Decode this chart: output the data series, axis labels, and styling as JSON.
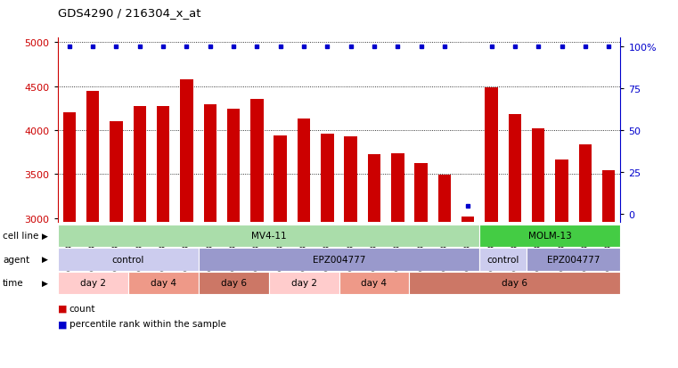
{
  "title": "GDS4290 / 216304_x_at",
  "samples": [
    "GSM739151",
    "GSM739152",
    "GSM739153",
    "GSM739157",
    "GSM739158",
    "GSM739159",
    "GSM739163",
    "GSM739164",
    "GSM739165",
    "GSM739148",
    "GSM739149",
    "GSM739150",
    "GSM739154",
    "GSM739155",
    "GSM739156",
    "GSM739160",
    "GSM739161",
    "GSM739162",
    "GSM739169",
    "GSM739170",
    "GSM739171",
    "GSM739166",
    "GSM739167",
    "GSM739168"
  ],
  "counts": [
    4200,
    4450,
    4100,
    4270,
    4270,
    4580,
    4290,
    4240,
    4350,
    3940,
    4130,
    3960,
    3930,
    3730,
    3740,
    3620,
    3490,
    3020,
    4490,
    4180,
    4020,
    3660,
    3840,
    3540
  ],
  "percentile_ranks": [
    100,
    100,
    100,
    100,
    100,
    100,
    100,
    100,
    100,
    100,
    100,
    100,
    100,
    100,
    100,
    100,
    100,
    5,
    100,
    100,
    100,
    100,
    100,
    100
  ],
  "bar_color": "#cc0000",
  "dot_color": "#0000cc",
  "ylim_left": [
    2950,
    5050
  ],
  "ylim_right": [
    -5,
    105
  ],
  "yticks_left": [
    3000,
    3500,
    4000,
    4500,
    5000
  ],
  "yticks_right": [
    0,
    25,
    50,
    75,
    100
  ],
  "ytick_labels_right": [
    "0",
    "25",
    "50",
    "75",
    "100%"
  ],
  "grid_values": [
    3500,
    4000,
    4500,
    5000
  ],
  "cell_line_data": [
    {
      "label": "MV4-11",
      "start": 0,
      "end": 18,
      "color": "#aaddaa"
    },
    {
      "label": "MOLM-13",
      "start": 18,
      "end": 24,
      "color": "#44cc44"
    }
  ],
  "agent_data": [
    {
      "label": "control",
      "start": 0,
      "end": 6,
      "color": "#ccccee"
    },
    {
      "label": "EPZ004777",
      "start": 6,
      "end": 18,
      "color": "#9999cc"
    },
    {
      "label": "control",
      "start": 18,
      "end": 20,
      "color": "#ccccee"
    },
    {
      "label": "EPZ004777",
      "start": 20,
      "end": 24,
      "color": "#9999cc"
    }
  ],
  "time_data": [
    {
      "label": "day 2",
      "start": 0,
      "end": 3,
      "color": "#ffcccc"
    },
    {
      "label": "day 4",
      "start": 3,
      "end": 6,
      "color": "#ee9988"
    },
    {
      "label": "day 6",
      "start": 6,
      "end": 9,
      "color": "#cc7766"
    },
    {
      "label": "day 2",
      "start": 9,
      "end": 12,
      "color": "#ffcccc"
    },
    {
      "label": "day 4",
      "start": 12,
      "end": 15,
      "color": "#ee9988"
    },
    {
      "label": "day 6",
      "start": 15,
      "end": 24,
      "color": "#cc7766"
    }
  ],
  "background_color": "#ffffff",
  "row_labels": [
    "cell line",
    "agent",
    "time"
  ],
  "bar_width": 0.55
}
